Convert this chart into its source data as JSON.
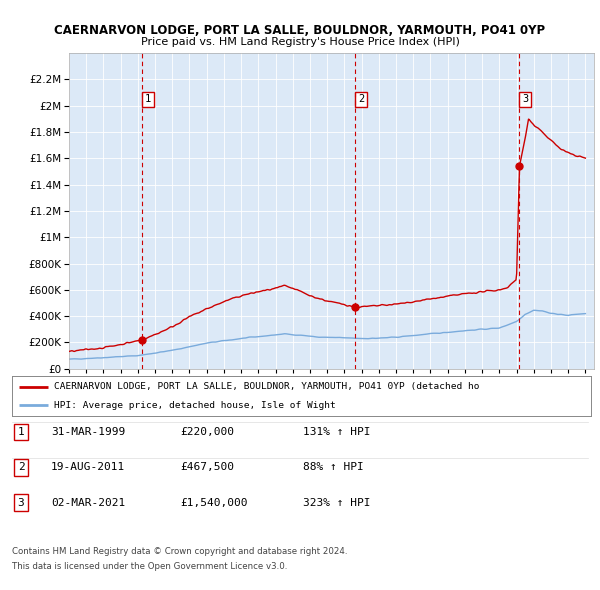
{
  "title1": "CAERNARVON LODGE, PORT LA SALLE, BOULDNOR, YARMOUTH, PO41 0YP",
  "title2": "Price paid vs. HM Land Registry's House Price Index (HPI)",
  "ylim": [
    0,
    2400000
  ],
  "yticks": [
    0,
    200000,
    400000,
    600000,
    800000,
    1000000,
    1200000,
    1400000,
    1600000,
    1800000,
    2000000,
    2200000
  ],
  "background_color": "#dce9f7",
  "sale_date_nums": [
    1999.25,
    2011.64,
    2021.17
  ],
  "sale_prices": [
    220000,
    467500,
    1540000
  ],
  "sale_labels": [
    "1",
    "2",
    "3"
  ],
  "vline_color": "#cc0000",
  "red_line_color": "#cc0000",
  "blue_line_color": "#7aabdc",
  "legend_label_red": "CAERNARVON LODGE, PORT LA SALLE, BOULDNOR, YARMOUTH, PO41 0YP (detached ho",
  "legend_label_blue": "HPI: Average price, detached house, Isle of Wight",
  "table_rows": [
    {
      "num": "1",
      "date": "31-MAR-1999",
      "price": "£220,000",
      "hpi": "131% ↑ HPI"
    },
    {
      "num": "2",
      "date": "19-AUG-2011",
      "price": "£467,500",
      "hpi": "88% ↑ HPI"
    },
    {
      "num": "3",
      "date": "02-MAR-2021",
      "price": "£1,540,000",
      "hpi": "323% ↑ HPI"
    }
  ],
  "footer1": "Contains HM Land Registry data © Crown copyright and database right 2024.",
  "footer2": "This data is licensed under the Open Government Licence v3.0.",
  "xlim_start": 1995.0,
  "xlim_end": 2025.5
}
